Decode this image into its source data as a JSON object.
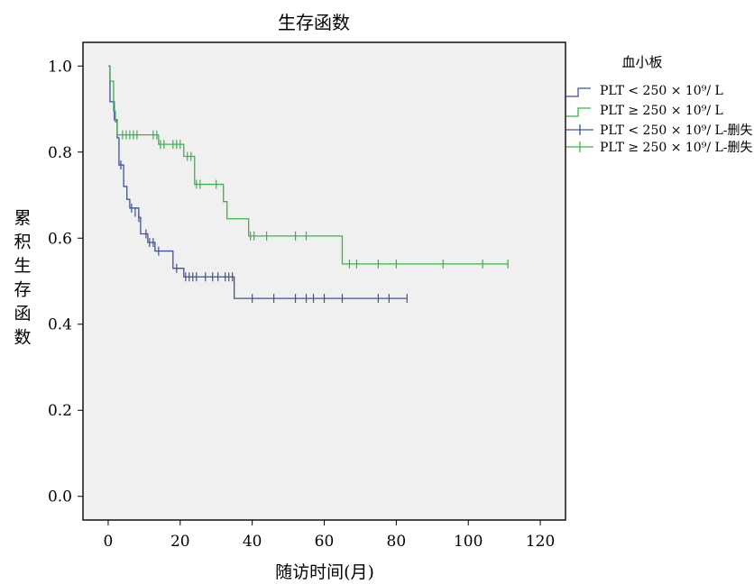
{
  "chart_data": {
    "type": "line",
    "subtype": "kaplan-meier step survival",
    "title": "生存函数",
    "xlabel": "随访时间(月)",
    "ylabel": "累积生存函数",
    "xlim": [
      -7,
      127
    ],
    "ylim": [
      -0.055,
      1.055
    ],
    "xticks": [
      0,
      20,
      40,
      60,
      80,
      100,
      120
    ],
    "yticks": [
      0.0,
      0.2,
      0.4,
      0.6,
      0.8,
      1.0
    ],
    "xtick_labels": [
      "0",
      "20",
      "40",
      "60",
      "80",
      "100",
      "120"
    ],
    "ytick_labels": [
      "0.0",
      "0.2",
      "0.4",
      "0.6",
      "0.8",
      "1.0"
    ],
    "grid": false,
    "plot_background": "#f0f0f0",
    "legend": {
      "title": "血小板",
      "placement": "right",
      "entries": [
        "PLT < 250 × 10⁹/ L",
        "PLT ≥ 250 × 10⁹/ L",
        "PLT < 250 × 10⁹/ L-删失",
        "PLT ≥ 250 × 10⁹/ L-删失"
      ]
    },
    "series": [
      {
        "name": "PLT < 250 × 10⁹/ L",
        "color": "#3b52a3",
        "steps": [
          [
            0,
            1.0
          ],
          [
            0.5,
            0.917
          ],
          [
            1.7,
            0.875
          ],
          [
            2.5,
            0.833
          ],
          [
            3.0,
            0.77
          ],
          [
            4.3,
            0.72
          ],
          [
            5.2,
            0.69
          ],
          [
            6.0,
            0.67
          ],
          [
            8.5,
            0.648
          ],
          [
            9.0,
            0.61
          ],
          [
            11.0,
            0.59
          ],
          [
            13.0,
            0.57
          ],
          [
            18.0,
            0.53
          ],
          [
            21.0,
            0.51
          ],
          [
            35.0,
            0.46
          ],
          [
            83.0,
            0.46
          ]
        ],
        "censored": [
          [
            3.5,
            0.77
          ],
          [
            6.5,
            0.67
          ],
          [
            7.5,
            0.66
          ],
          [
            8.5,
            0.648
          ],
          [
            10.5,
            0.61
          ],
          [
            11.5,
            0.59
          ],
          [
            12.5,
            0.59
          ],
          [
            14.0,
            0.57
          ],
          [
            19.0,
            0.53
          ],
          [
            21.5,
            0.51
          ],
          [
            22.5,
            0.51
          ],
          [
            23.5,
            0.51
          ],
          [
            24.5,
            0.51
          ],
          [
            27.0,
            0.51
          ],
          [
            29.0,
            0.51
          ],
          [
            30.5,
            0.51
          ],
          [
            32.5,
            0.51
          ],
          [
            33.5,
            0.51
          ],
          [
            34.5,
            0.51
          ],
          [
            40.0,
            0.46
          ],
          [
            46.0,
            0.46
          ],
          [
            52.0,
            0.46
          ],
          [
            55.0,
            0.46
          ],
          [
            57.0,
            0.46
          ],
          [
            60.0,
            0.46
          ],
          [
            65.0,
            0.46
          ],
          [
            75.0,
            0.46
          ],
          [
            78.0,
            0.46
          ],
          [
            83.0,
            0.46
          ]
        ]
      },
      {
        "name": "PLT ≥ 250 × 10⁹/ L",
        "color": "#37b44b",
        "steps": [
          [
            0,
            1.0
          ],
          [
            0.5,
            0.965
          ],
          [
            1.5,
            0.895
          ],
          [
            2.0,
            0.87
          ],
          [
            2.5,
            0.84
          ],
          [
            14.0,
            0.818
          ],
          [
            21.0,
            0.79
          ],
          [
            24.0,
            0.725
          ],
          [
            32.0,
            0.685
          ],
          [
            33.0,
            0.645
          ],
          [
            39.0,
            0.605
          ],
          [
            65.0,
            0.54
          ],
          [
            111.0,
            0.54
          ]
        ],
        "censored": [
          [
            4.0,
            0.84
          ],
          [
            5.0,
            0.84
          ],
          [
            6.0,
            0.84
          ],
          [
            7.0,
            0.84
          ],
          [
            8.0,
            0.84
          ],
          [
            12.5,
            0.84
          ],
          [
            13.5,
            0.84
          ],
          [
            14.5,
            0.818
          ],
          [
            15.5,
            0.818
          ],
          [
            18.0,
            0.818
          ],
          [
            19.0,
            0.818
          ],
          [
            20.0,
            0.818
          ],
          [
            22.0,
            0.79
          ],
          [
            23.0,
            0.79
          ],
          [
            24.5,
            0.725
          ],
          [
            25.5,
            0.725
          ],
          [
            30.0,
            0.725
          ],
          [
            39.5,
            0.605
          ],
          [
            40.5,
            0.605
          ],
          [
            44.0,
            0.605
          ],
          [
            52.0,
            0.605
          ],
          [
            55.0,
            0.605
          ],
          [
            67.0,
            0.54
          ],
          [
            69.0,
            0.54
          ],
          [
            75.0,
            0.54
          ],
          [
            80.0,
            0.54
          ],
          [
            93.0,
            0.54
          ],
          [
            104.0,
            0.54
          ],
          [
            111.0,
            0.54
          ]
        ]
      }
    ]
  }
}
